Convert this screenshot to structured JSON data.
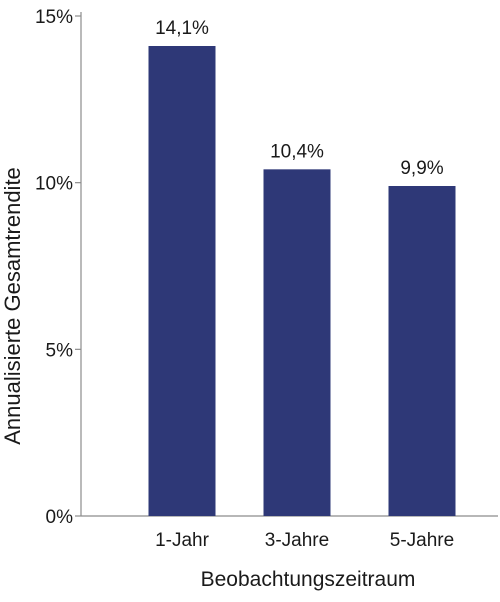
{
  "chart_data": {
    "type": "bar",
    "title": "",
    "xlabel": "Beobachtungszeitraum",
    "ylabel": "Annualisierte Gesamtrendite",
    "categories": [
      "1-Jahr",
      "3-Jahre",
      "5-Jahre"
    ],
    "values": [
      14.1,
      10.4,
      9.9
    ],
    "data_labels": [
      "14,1%",
      "10,4%",
      "9,9%"
    ],
    "ylim": [
      0,
      15
    ],
    "yticks": [
      0,
      5,
      10,
      15
    ],
    "ytick_labels": [
      "0%",
      "5%",
      "10%",
      "15%"
    ],
    "grid": false,
    "legend": "none",
    "bar_color": "#2e3877",
    "axis_color": "#8c8c8c"
  }
}
